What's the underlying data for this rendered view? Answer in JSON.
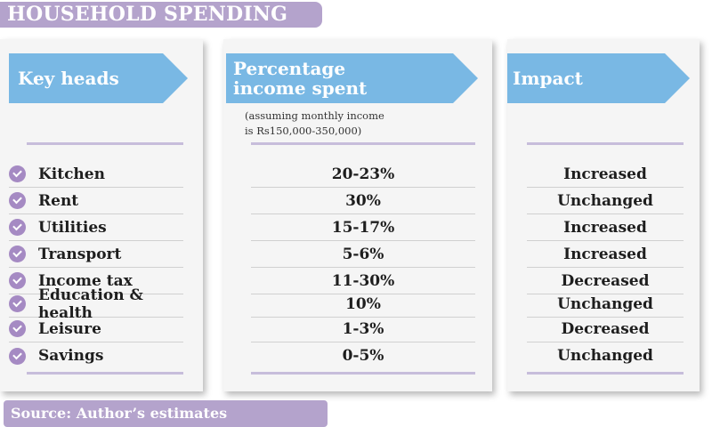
{
  "title": "HOUSEHOLD SPENDING",
  "columns": {
    "key_heads": "Key heads",
    "percentage_line1": "Percentage",
    "percentage_line2": "income spent",
    "percentage_note_line1": "(assuming monthly income",
    "percentage_note_line2": "is Rs150,000-350,000)",
    "impact": "Impact"
  },
  "rows": [
    {
      "head": "Kitchen",
      "percentage": "20-23%",
      "impact": "Increased"
    },
    {
      "head": "Rent",
      "percentage": "30%",
      "impact": "Unchanged"
    },
    {
      "head": "Utilities",
      "percentage": "15-17%",
      "impact": "Increased"
    },
    {
      "head": "Transport",
      "percentage": "5-6%",
      "impact": "Increased"
    },
    {
      "head": "Income tax",
      "percentage": "11-30%",
      "impact": "Decreased"
    },
    {
      "head": "Education & health",
      "percentage": "10%",
      "impact": "Unchanged"
    },
    {
      "head": "Leisure",
      "percentage": "1-3%",
      "impact": "Decreased"
    },
    {
      "head": "Savings",
      "percentage": "0-5%",
      "impact": "Unchanged"
    }
  ],
  "source": "Source: Author’s estimates",
  "colors": {
    "accent_purple": "#b4a3cc",
    "arrow_blue": "#79b8e4",
    "check_purple": "#a58ac3",
    "panel_bg": "#f5f5f5"
  },
  "icons": {
    "row_marker": "check-circle-icon"
  }
}
